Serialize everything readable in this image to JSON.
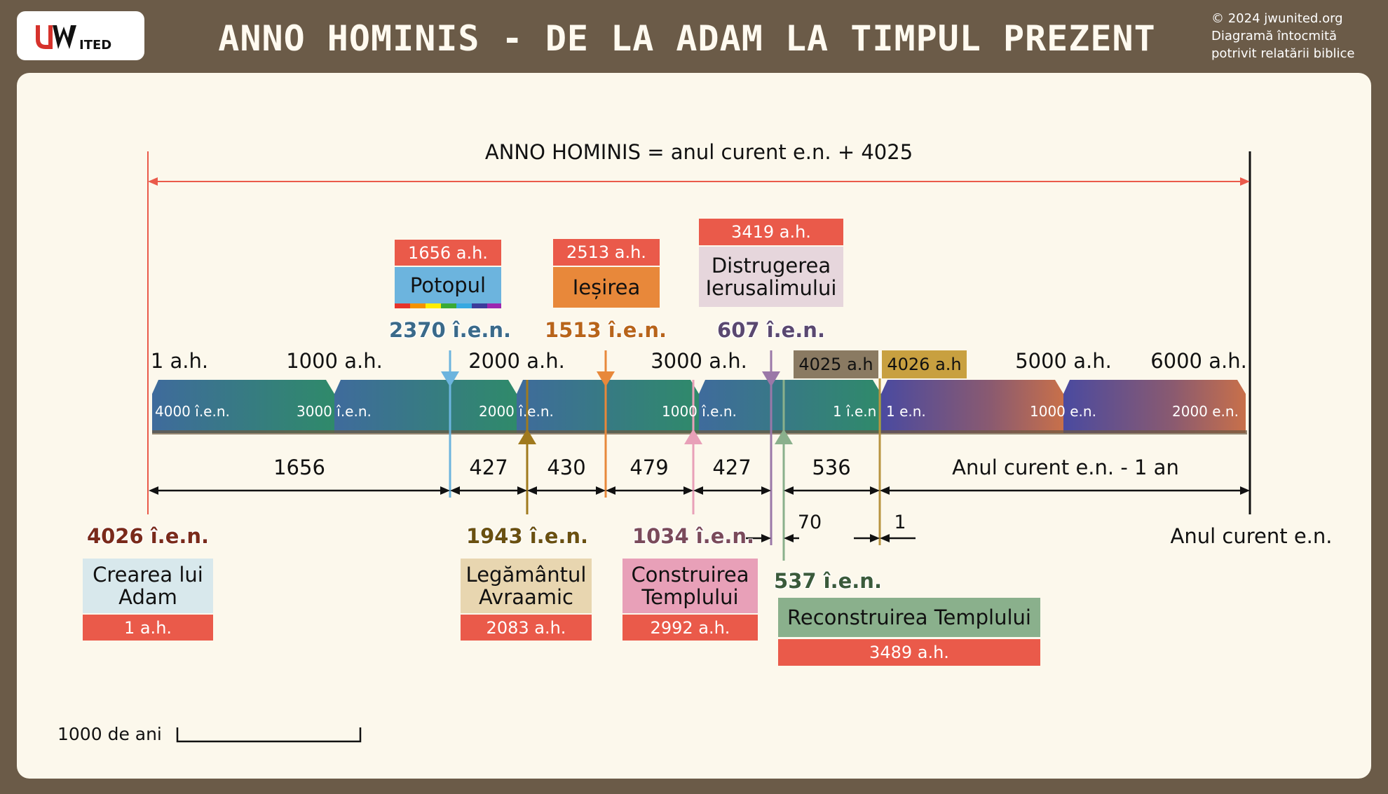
{
  "header": {
    "logo_text": "JWUNITED",
    "title": "ANNO HOMINIS - DE LA ADAM LA TIMPUL PREZENT",
    "credit_lines": [
      "© 2024 jwunited.org",
      "Diagramă întocmită",
      "potrivit relatării biblice"
    ]
  },
  "formula": "ANNO HOMINIS = anul curent e.n. + 4025",
  "scale_ah": [
    "1 a.h.",
    "1000 a.h.",
    "2000 a.h.",
    "3000 a.h.",
    "5000 a.h.",
    "6000 a.h."
  ],
  "special_ah": {
    "a": "4025 a.h",
    "b": "4026 a.h"
  },
  "bar_labels": [
    "4000 î.e.n.",
    "3000 î.e.n.",
    "2000 î.e.n.",
    "1000 î.e.n.",
    "1 î.e.n",
    "1 e.n.",
    "1000 e.n.",
    "2000 e.n."
  ],
  "intervals": [
    "1656",
    "427",
    "430",
    "479",
    "427",
    "536",
    "Anul curent e.n. - 1 an"
  ],
  "small_intervals": {
    "seventy": "70",
    "one": "1"
  },
  "events_top": [
    {
      "ah": "1656 a.h.",
      "name": "Potopul",
      "bce": "2370 î.e.n."
    },
    {
      "ah": "2513 a.h.",
      "name": "Ieșirea",
      "bce": "1513 î.e.n."
    },
    {
      "ah": "3419 a.h.",
      "name_lines": [
        "Distrugerea",
        "Ierusalimului"
      ],
      "bce": "607 î.e.n."
    }
  ],
  "events_bottom": [
    {
      "bce": "4026 î.e.n.",
      "name_lines": [
        "Crearea lui",
        "Adam"
      ],
      "ah": "1 a.h."
    },
    {
      "bce": "1943 î.e.n.",
      "name_lines": [
        "Legământul",
        "Avraamic"
      ],
      "ah": "2083 a.h."
    },
    {
      "bce": "1034 î.e.n.",
      "name_lines": [
        "Construirea",
        "Templului"
      ],
      "ah": "2992 a.h."
    },
    {
      "bce": "537 î.e.n.",
      "name": "Reconstruirea Templului",
      "ah": "3489 a.h."
    }
  ],
  "present_label": "Anul curent e.n.",
  "scale_bar_label": "1000 de ani",
  "colors": {
    "red": "#ea5a4a",
    "blue": "#6cb4de",
    "orange": "#e8883a",
    "mauve": "#e6d6dc",
    "gold": "#a07a1e",
    "pink": "#e8a0b8",
    "purple": "#9a78a8",
    "green": "#8ab08c",
    "tan": "#e8d6b0",
    "lightblue": "#d8e8ec",
    "brown": "#8a7a62",
    "mustard": "#c8a040"
  }
}
